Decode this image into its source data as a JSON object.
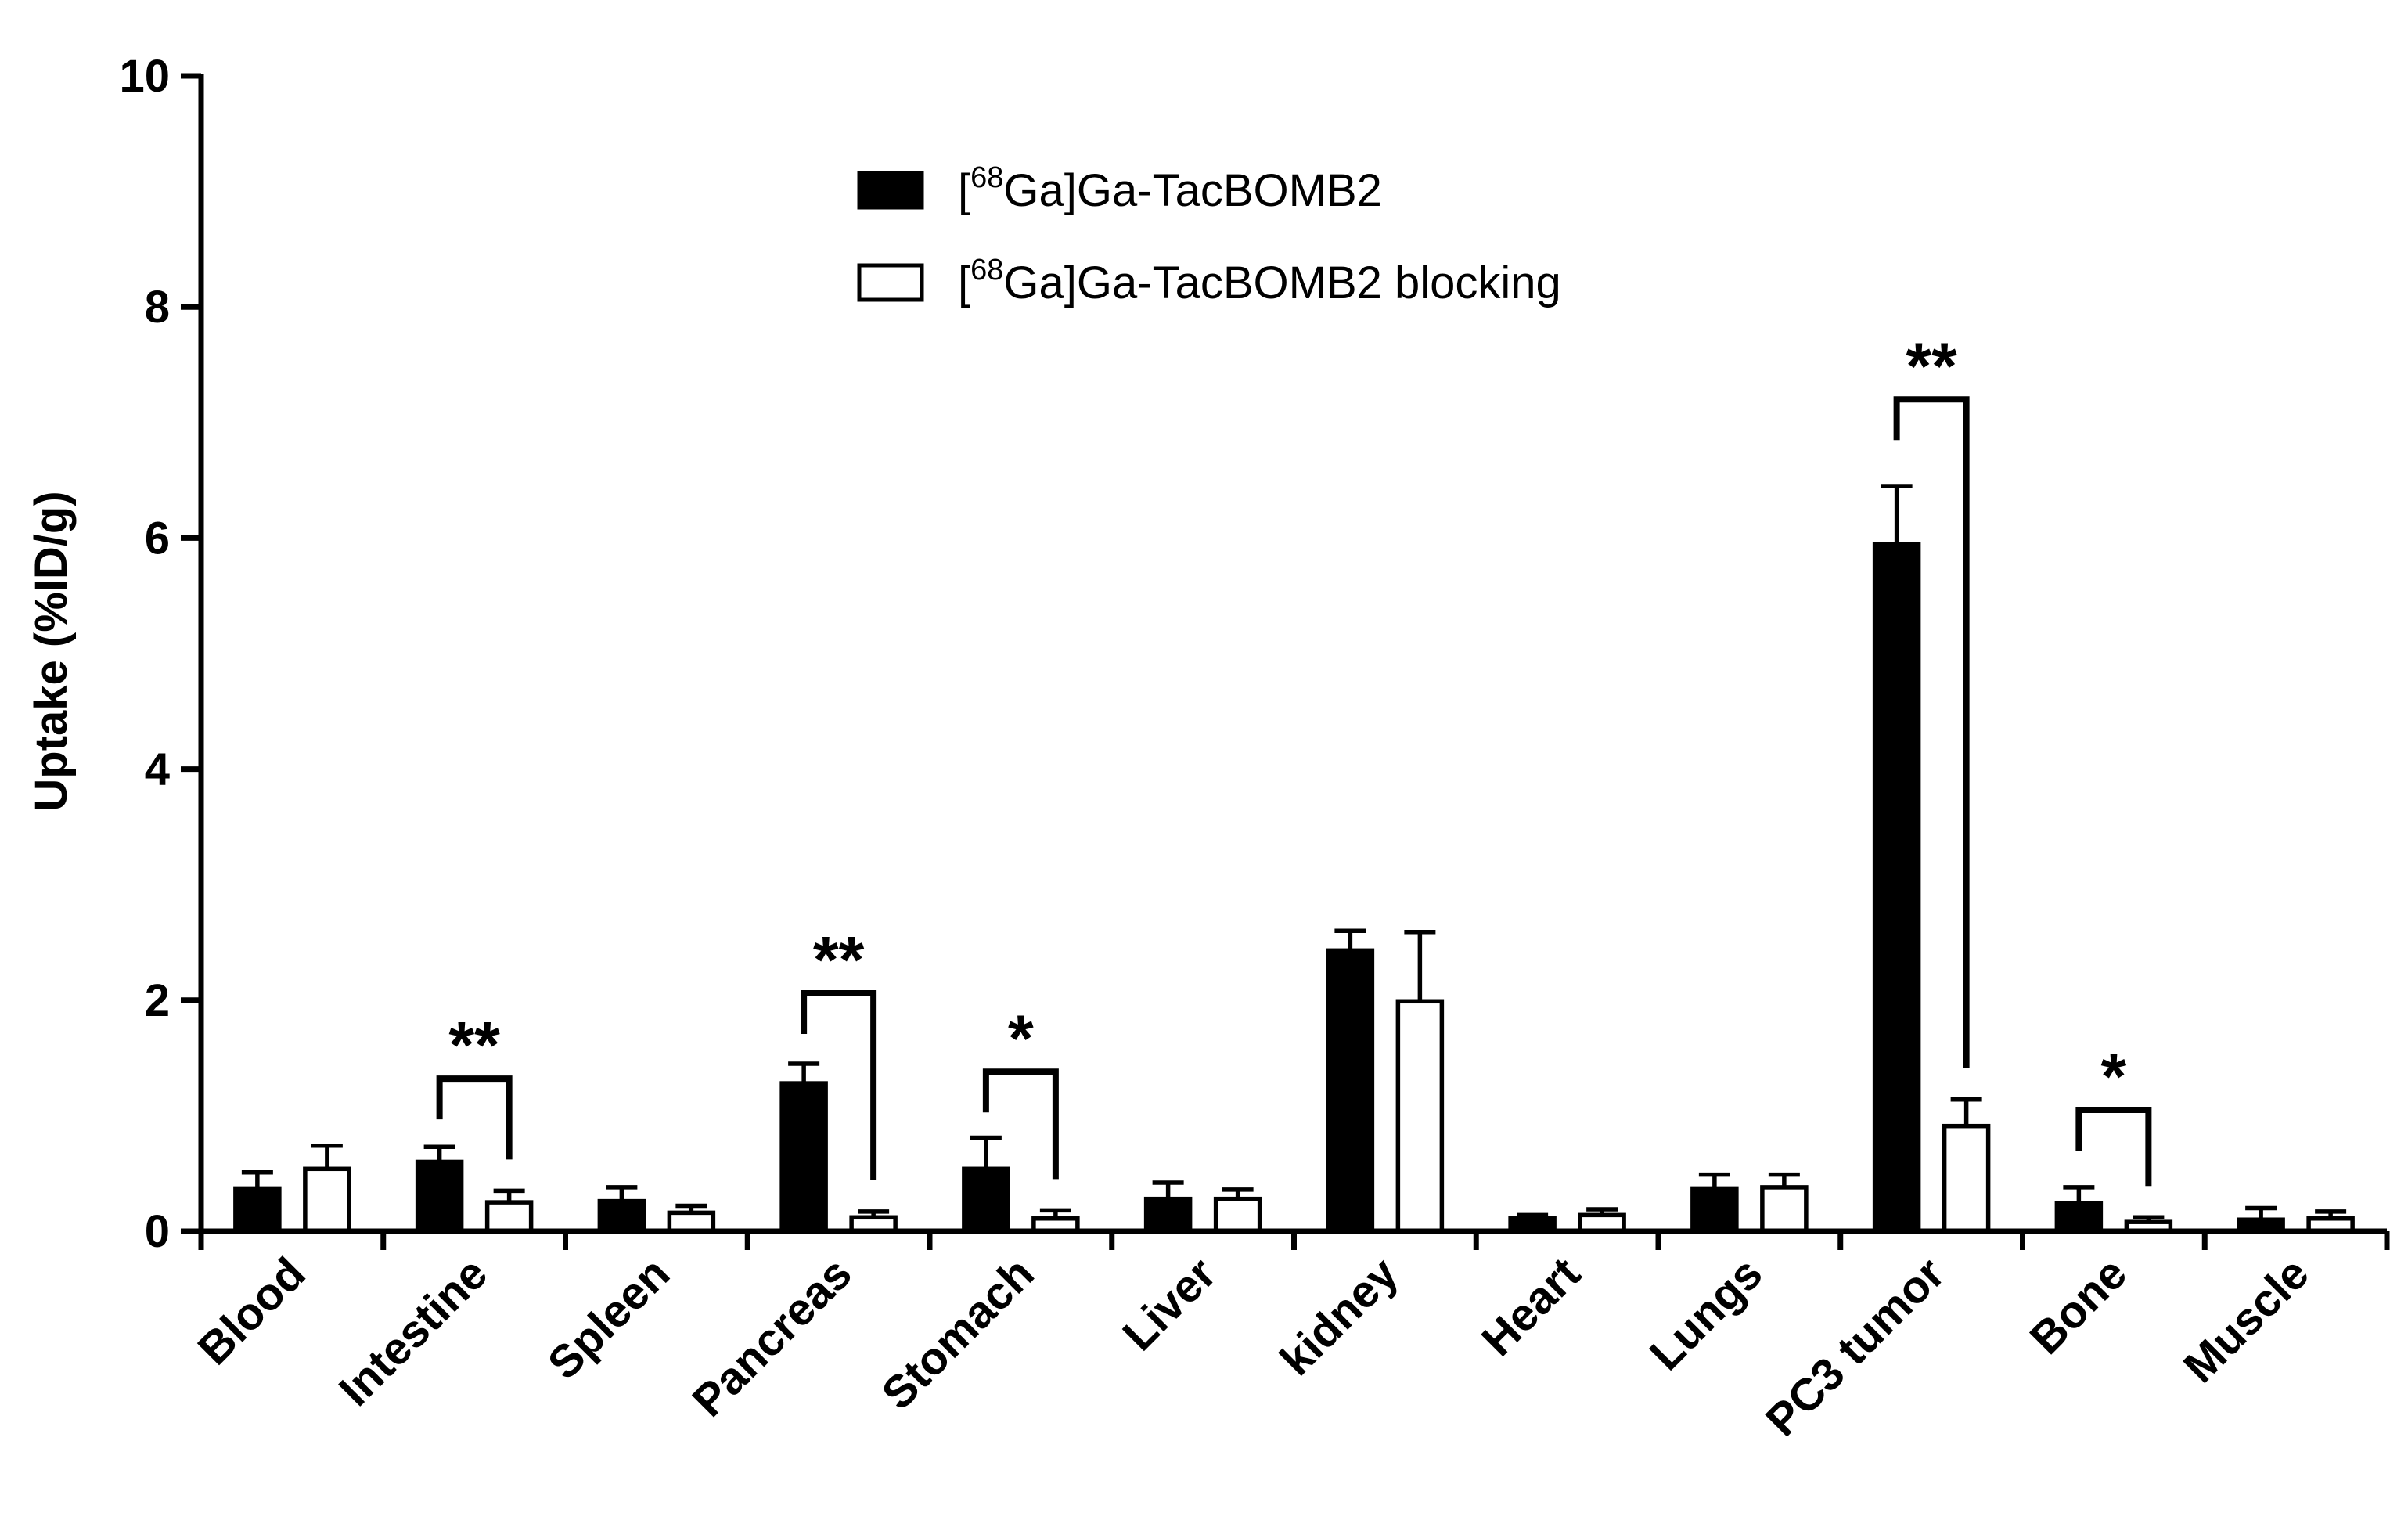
{
  "chart_data": {
    "type": "bar",
    "ylabel": "Uptake (%ID/g)",
    "xlabel": "",
    "ylim": [
      0,
      10
    ],
    "yticks": [
      0,
      2,
      4,
      6,
      8,
      10
    ],
    "grid": false,
    "legend_placement": "top-center",
    "categories": [
      "Blood",
      "Intestine",
      "Spleen",
      "Pancreas",
      "Stomach",
      "Liver",
      "kidney",
      "Heart",
      "Lungs",
      "PC3 tumor",
      "Bone",
      "Muscle"
    ],
    "series": [
      {
        "name": "[68Ga]Ga-TacBOMB2",
        "legend_bracket_open": "[",
        "legend_sup": "68",
        "legend_rest": "Ga]Ga-TacBOMB2",
        "fill": "#000000",
        "values": [
          0.37,
          0.6,
          0.26,
          1.28,
          0.54,
          0.28,
          2.43,
          0.11,
          0.37,
          5.95,
          0.24,
          0.1
        ],
        "errors": [
          0.14,
          0.13,
          0.12,
          0.17,
          0.27,
          0.14,
          0.17,
          0.03,
          0.12,
          0.5,
          0.14,
          0.1
        ]
      },
      {
        "name": "[68Ga]Ga-TacBOMB2 blocking",
        "legend_bracket_open": "[",
        "legend_sup": "68",
        "legend_rest": "Ga]Ga-TacBOMB2 blocking",
        "fill": "#ffffff",
        "values": [
          0.54,
          0.25,
          0.16,
          0.12,
          0.11,
          0.28,
          1.99,
          0.14,
          0.38,
          0.91,
          0.08,
          0.11
        ],
        "errors": [
          0.2,
          0.1,
          0.06,
          0.05,
          0.07,
          0.08,
          0.6,
          0.05,
          0.11,
          0.23,
          0.04,
          0.06
        ]
      }
    ],
    "significance": [
      {
        "category": "Intestine",
        "label": "**",
        "y": 1.32
      },
      {
        "category": "Pancreas",
        "label": "**",
        "y": 2.06
      },
      {
        "category": "Stomach",
        "label": "*",
        "y": 1.38
      },
      {
        "category": "PC3 tumor",
        "label": "**",
        "y": 7.2
      },
      {
        "category": "Bone",
        "label": "*",
        "y": 1.05
      }
    ]
  }
}
